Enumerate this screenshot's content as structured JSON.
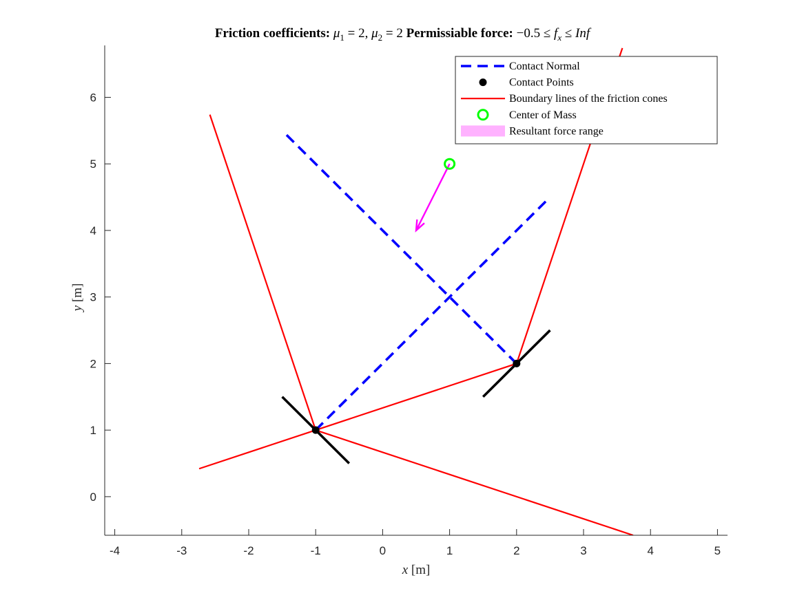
{
  "chart_data": {
    "type": "line",
    "title_parts": [
      {
        "text": "Friction coefficients: ",
        "style": "bold"
      },
      {
        "text": "μ",
        "style": "italic"
      },
      {
        "text": "1",
        "style": "sub"
      },
      {
        "text": " = 2, ",
        "style": "normal"
      },
      {
        "text": "μ",
        "style": "italic"
      },
      {
        "text": "2",
        "style": "sub"
      },
      {
        "text": " = 2  ",
        "style": "normal"
      },
      {
        "text": "Permissiable force: ",
        "style": "bold"
      },
      {
        "text": "−0.5 ≤ ",
        "style": "normal"
      },
      {
        "text": "f",
        "style": "italic"
      },
      {
        "text": "x",
        "style": "sub-italic"
      },
      {
        "text": " ≤ ",
        "style": "normal"
      },
      {
        "text": "Inf",
        "style": "italic"
      }
    ],
    "xlabel": {
      "var": "x",
      "unit": " [m]"
    },
    "ylabel": {
      "var": "y",
      "unit": " [m]"
    },
    "xlim": [
      -4.15,
      5.15
    ],
    "ylim": [
      -0.58,
      6.78
    ],
    "xticks": [
      -4,
      -3,
      -2,
      -1,
      0,
      1,
      2,
      3,
      4,
      5
    ],
    "yticks": [
      0,
      1,
      2,
      3,
      4,
      5,
      6
    ],
    "grid": false,
    "legend_position": "top-right",
    "series": [
      {
        "name": "Contact Normal",
        "color": "#0000ff",
        "style": "dashed",
        "segments": [
          [
            [
              -1,
              1
            ],
            [
              2.5,
              4.5
            ]
          ],
          [
            [
              2,
              2
            ],
            [
              -1.5,
              5.5
            ]
          ]
        ]
      },
      {
        "name": "Contact Points",
        "color": "#000000",
        "style": "marker",
        "points": [
          [
            -1,
            1
          ],
          [
            2,
            2
          ]
        ]
      },
      {
        "name": "Boundary lines of the friction cones",
        "color": "#ff0000",
        "style": "solid",
        "segments": [
          [
            [
              -1,
              1
            ],
            [
              -2.58,
              5.74
            ]
          ],
          [
            [
              -1,
              1
            ],
            [
              3.74,
              -0.58
            ]
          ],
          [
            [
              -1,
              1
            ],
            [
              -2.74,
              0.42
            ]
          ],
          [
            [
              2,
              2
            ],
            [
              3.58,
              6.74
            ]
          ],
          [
            [
              2,
              2
            ],
            [
              -1,
              1
            ]
          ]
        ]
      },
      {
        "name": "Center of Mass",
        "color": "#00ff00",
        "style": "circle",
        "points": [
          [
            1,
            5
          ]
        ]
      },
      {
        "name": "Resultant force range",
        "color": "#ff00ff",
        "style": "fill",
        "arrow": {
          "from": [
            1,
            5
          ],
          "to": [
            0.5,
            4
          ]
        }
      }
    ],
    "contact_tangents": [
      [
        [
          -1.5,
          1.5
        ],
        [
          -0.5,
          0.5
        ]
      ],
      [
        [
          1.5,
          1.5
        ],
        [
          2.5,
          2.5
        ]
      ]
    ],
    "legend_entries": [
      "Contact Normal",
      "Contact Points",
      "Boundary lines of the friction cones",
      "Center of Mass",
      "Resultant force range"
    ]
  }
}
